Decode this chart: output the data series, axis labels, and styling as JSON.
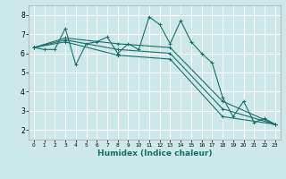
{
  "xlabel": "Humidex (Indice chaleur)",
  "xlim": [
    -0.5,
    23.5
  ],
  "ylim": [
    1.5,
    8.5
  ],
  "xticks": [
    0,
    1,
    2,
    3,
    4,
    5,
    6,
    7,
    8,
    9,
    10,
    11,
    12,
    13,
    14,
    15,
    16,
    17,
    18,
    19,
    20,
    21,
    22,
    23
  ],
  "yticks": [
    2,
    3,
    4,
    5,
    6,
    7,
    8
  ],
  "bg_color": "#cce8e8",
  "grid_color": "#ffffff",
  "line_color": "#1a6e6a",
  "series": [
    {
      "x": [
        0,
        1,
        2,
        3,
        4,
        5,
        6,
        7,
        8,
        9,
        10,
        11,
        12,
        13,
        14,
        15,
        16,
        17,
        18,
        19,
        20,
        21,
        22,
        23
      ],
      "y": [
        6.3,
        6.2,
        6.2,
        7.3,
        5.4,
        6.5,
        6.6,
        6.85,
        6.0,
        6.5,
        6.2,
        7.9,
        7.5,
        6.5,
        7.7,
        6.6,
        6.0,
        5.5,
        3.7,
        2.7,
        3.5,
        2.4,
        2.6,
        2.3
      ],
      "marker": true
    },
    {
      "x": [
        0,
        3,
        8,
        13,
        18,
        23
      ],
      "y": [
        6.3,
        6.8,
        6.5,
        6.3,
        3.5,
        2.3
      ],
      "marker": true
    },
    {
      "x": [
        0,
        3,
        8,
        13,
        18,
        23
      ],
      "y": [
        6.3,
        6.7,
        6.2,
        6.0,
        3.1,
        2.3
      ],
      "marker": true
    },
    {
      "x": [
        0,
        3,
        8,
        13,
        18,
        23
      ],
      "y": [
        6.3,
        6.6,
        5.9,
        5.7,
        2.7,
        2.3
      ],
      "marker": true
    }
  ]
}
